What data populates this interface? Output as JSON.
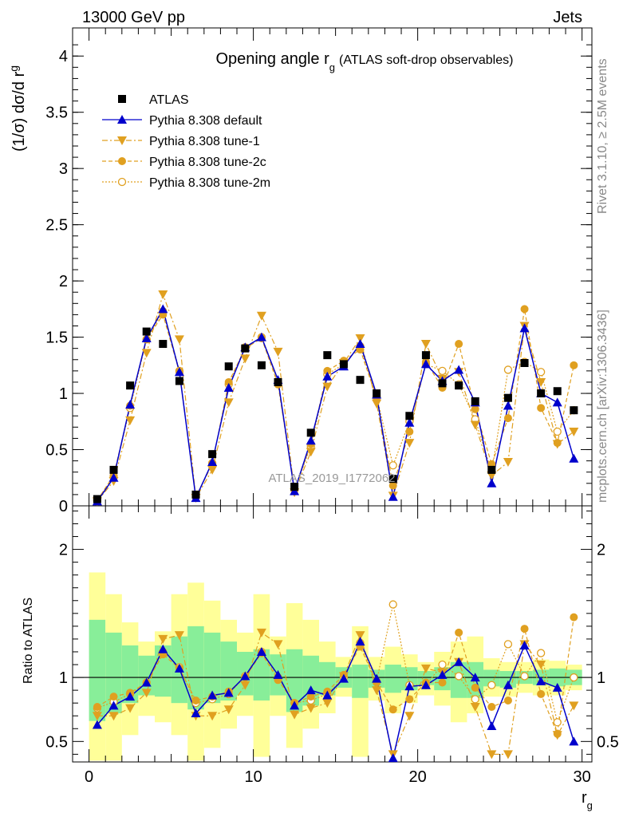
{
  "header": {
    "left": "13000 GeV pp",
    "right": "Jets"
  },
  "side_labels": {
    "rivet": "Rivet 3.1.10, ≥ 2.5M events",
    "mcplots": "mcplots.cern.ch [arXiv:1306.3436]"
  },
  "colors": {
    "atlas": "#000000",
    "default": "#0000cc",
    "tunes": "#e0a020",
    "band_inner": "#88ee99",
    "band_outer": "#ffff99"
  },
  "chart_data": [
    {
      "type": "scatter",
      "title": "Opening angle r",
      "title_sub": "g",
      "title_suffix": "(ATLAS soft-drop observables)",
      "ylabel": "(1/σ) dσ/d r",
      "ylabel_sub": "g",
      "watermark": "ATLAS_2019_I1772062",
      "xlim": [
        -1,
        30.6
      ],
      "ylim": [
        0,
        4.25
      ],
      "yticks": [
        "0",
        "0.5",
        "1",
        "1.5",
        "2",
        "2.5",
        "3",
        "3.5",
        "4"
      ],
      "ytick_values": [
        0,
        0.5,
        1,
        1.5,
        2,
        2.5,
        3,
        3.5,
        4
      ],
      "legend_position": "top-left",
      "series": [
        {
          "name": "ATLAS",
          "marker": "square",
          "x": [
            0.5,
            1.5,
            2.5,
            3.5,
            4.5,
            5.5,
            6.5,
            7.5,
            8.5,
            9.5,
            10.5,
            11.5,
            12.5,
            13.5,
            14.5,
            15.5,
            16.5,
            17.5,
            18.5,
            19.5,
            20.5,
            21.5,
            22.5,
            23.5,
            24.5,
            25.5,
            26.5,
            27.5,
            28.5,
            29.5
          ],
          "values": [
            0.06,
            0.32,
            1.07,
            1.55,
            1.44,
            1.11,
            0.1,
            0.46,
            1.24,
            1.4,
            1.25,
            1.1,
            0.17,
            0.65,
            1.34,
            1.26,
            1.12,
            1.0,
            0.24,
            0.8,
            1.34,
            1.09,
            1.07,
            0.93,
            0.32,
            0.96,
            1.27,
            1.0,
            1.02,
            0.85
          ]
        },
        {
          "name": "Pythia 8.308 default",
          "marker": "triangle-up",
          "x": [
            0.5,
            1.5,
            2.5,
            3.5,
            4.5,
            5.5,
            6.5,
            7.5,
            8.5,
            9.5,
            10.5,
            11.5,
            12.5,
            13.5,
            14.5,
            15.5,
            16.5,
            17.5,
            18.5,
            19.5,
            20.5,
            21.5,
            22.5,
            23.5,
            24.5,
            25.5,
            26.5,
            27.5,
            28.5,
            29.5
          ],
          "values": [
            0.04,
            0.25,
            0.9,
            1.49,
            1.75,
            1.19,
            0.07,
            0.39,
            1.05,
            1.41,
            1.5,
            1.12,
            0.13,
            0.58,
            1.15,
            1.24,
            1.44,
            0.99,
            0.08,
            0.74,
            1.26,
            1.11,
            1.21,
            0.92,
            0.2,
            0.89,
            1.58,
            1.0,
            0.92,
            0.42
          ]
        },
        {
          "name": "Pythia 8.308 tune-1",
          "marker": "triangle-down",
          "x": [
            0.5,
            1.5,
            2.5,
            3.5,
            4.5,
            5.5,
            6.5,
            7.5,
            8.5,
            9.5,
            10.5,
            11.5,
            12.5,
            13.5,
            14.5,
            15.5,
            16.5,
            17.5,
            18.5,
            19.5,
            20.5,
            21.5,
            22.5,
            23.5,
            24.5,
            25.5,
            26.5,
            27.5,
            28.5,
            29.5
          ],
          "values": [
            0.04,
            0.22,
            0.76,
            1.36,
            1.88,
            1.48,
            0.07,
            0.32,
            0.92,
            1.31,
            1.69,
            1.37,
            0.12,
            0.48,
            1.06,
            1.27,
            1.49,
            0.91,
            0.09,
            0.56,
            1.44,
            1.13,
            1.19,
            0.72,
            0.27,
            0.39,
            1.6,
            1.1,
            0.55,
            0.66
          ]
        },
        {
          "name": "Pythia 8.308 tune-2c",
          "marker": "circle",
          "x": [
            0.5,
            1.5,
            2.5,
            3.5,
            4.5,
            5.5,
            6.5,
            7.5,
            8.5,
            9.5,
            10.5,
            11.5,
            12.5,
            13.5,
            14.5,
            15.5,
            16.5,
            17.5,
            18.5,
            19.5,
            20.5,
            21.5,
            22.5,
            23.5,
            24.5,
            25.5,
            26.5,
            27.5,
            28.5,
            29.5
          ],
          "values": [
            0.05,
            0.27,
            0.89,
            1.48,
            1.7,
            1.19,
            0.08,
            0.37,
            1.1,
            1.4,
            1.49,
            1.08,
            0.14,
            0.55,
            1.2,
            1.29,
            1.39,
            0.96,
            0.18,
            0.66,
            1.28,
            1.05,
            1.44,
            0.86,
            0.37,
            0.78,
            1.75,
            0.87,
            0.56,
            1.25
          ]
        },
        {
          "name": "Pythia 8.308 tune-2m",
          "marker": "open-circle",
          "x": [
            0.5,
            1.5,
            2.5,
            3.5,
            4.5,
            5.5,
            6.5,
            7.5,
            8.5,
            9.5,
            10.5,
            11.5,
            12.5,
            13.5,
            14.5,
            15.5,
            16.5,
            17.5,
            18.5,
            19.5,
            20.5,
            21.5,
            22.5,
            23.5,
            24.5,
            25.5,
            26.5,
            27.5,
            28.5,
            29.5
          ],
          "values": [
            0.05,
            0.26,
            0.87,
            1.48,
            1.73,
            1.2,
            0.08,
            0.38,
            1.08,
            1.41,
            1.5,
            1.1,
            0.14,
            0.53,
            1.17,
            1.26,
            1.42,
            0.97,
            0.36,
            0.75,
            1.26,
            1.2,
            1.08,
            0.77,
            0.3,
            1.21,
            1.28,
            1.19,
            0.66,
            0.85
          ]
        }
      ]
    },
    {
      "type": "scatter",
      "ylabel": "Ratio to ATLAS",
      "xlabel": "r",
      "xlabel_sub": "g",
      "xlim": [
        -1,
        30.6
      ],
      "ylim": [
        0.34,
        2.34
      ],
      "yticks": [
        "0.5",
        "1",
        "2"
      ],
      "ytick_values": [
        0.5,
        1,
        2
      ],
      "xticks": [
        "0",
        "10",
        "20",
        "30"
      ],
      "xtick_values": [
        0,
        10,
        20,
        30
      ],
      "reference_line": 1,
      "bands": {
        "x": [
          0.5,
          1.5,
          2.5,
          3.5,
          4.5,
          5.5,
          6.5,
          7.5,
          8.5,
          9.5,
          10.5,
          11.5,
          12.5,
          13.5,
          14.5,
          15.5,
          16.5,
          17.5,
          18.5,
          19.5,
          20.5,
          21.5,
          22.5,
          23.5,
          24.5,
          25.5,
          26.5,
          27.5,
          28.5,
          29.5
        ],
        "inner_lo": [
          0.66,
          0.72,
          0.8,
          0.86,
          0.85,
          0.8,
          0.75,
          0.8,
          0.82,
          0.86,
          0.82,
          0.86,
          0.73,
          0.78,
          0.86,
          0.92,
          0.84,
          0.92,
          0.88,
          0.9,
          0.94,
          0.9,
          0.84,
          0.84,
          0.93,
          0.92,
          0.95,
          0.94,
          0.93,
          0.94
        ],
        "inner_hi": [
          1.45,
          1.35,
          1.25,
          1.17,
          1.25,
          1.32,
          1.4,
          1.35,
          1.28,
          1.2,
          1.22,
          1.18,
          1.22,
          1.17,
          1.12,
          1.08,
          1.1,
          1.06,
          1.1,
          1.08,
          1.05,
          1.08,
          1.12,
          1.12,
          1.06,
          1.05,
          1.05,
          1.06,
          1.07,
          1.06
        ],
        "outer_lo": [
          0.35,
          0.35,
          0.55,
          0.7,
          0.65,
          0.55,
          0.35,
          0.45,
          0.6,
          0.7,
          0.38,
          0.7,
          0.45,
          0.6,
          0.72,
          0.85,
          0.38,
          0.82,
          0.72,
          0.8,
          0.86,
          0.78,
          0.65,
          0.72,
          0.85,
          0.85,
          0.88,
          0.86,
          0.86,
          0.9
        ],
        "outer_hi": [
          1.82,
          1.65,
          1.43,
          1.28,
          1.36,
          1.65,
          1.74,
          1.6,
          1.45,
          1.35,
          1.65,
          1.32,
          1.58,
          1.45,
          1.28,
          1.16,
          1.4,
          1.16,
          1.24,
          1.18,
          1.12,
          1.2,
          1.28,
          1.32,
          1.15,
          1.12,
          1.12,
          1.14,
          1.13,
          1.1
        ]
      },
      "series": [
        {
          "name": "Pythia 8.308 default",
          "marker": "triangle-up",
          "x": [
            0.5,
            1.5,
            2.5,
            3.5,
            4.5,
            5.5,
            6.5,
            7.5,
            8.5,
            9.5,
            10.5,
            11.5,
            12.5,
            13.5,
            14.5,
            15.5,
            16.5,
            17.5,
            18.5,
            19.5,
            20.5,
            21.5,
            22.5,
            23.5,
            24.5,
            25.5,
            26.5,
            27.5,
            28.5,
            29.5
          ],
          "values": [
            0.63,
            0.78,
            0.85,
            0.96,
            1.22,
            1.07,
            0.72,
            0.86,
            0.88,
            1.01,
            1.2,
            1.02,
            0.78,
            0.9,
            0.86,
            0.99,
            1.28,
            0.99,
            0.37,
            0.93,
            0.94,
            1.02,
            1.12,
            1.0,
            0.62,
            0.94,
            1.25,
            0.97,
            0.92,
            0.5
          ]
        },
        {
          "name": "Pythia 8.308 tune-1",
          "marker": "triangle-down",
          "x": [
            0.5,
            1.5,
            2.5,
            3.5,
            4.5,
            5.5,
            6.5,
            7.5,
            8.5,
            9.5,
            10.5,
            11.5,
            12.5,
            13.5,
            14.5,
            15.5,
            16.5,
            17.5,
            18.5,
            19.5,
            20.5,
            21.5,
            22.5,
            23.5,
            24.5,
            25.5,
            26.5,
            27.5,
            28.5,
            29.5
          ],
          "values": [
            0.7,
            0.7,
            0.76,
            0.88,
            1.3,
            1.33,
            0.7,
            0.7,
            0.75,
            0.94,
            1.35,
            1.26,
            0.71,
            0.76,
            0.8,
            1.01,
            1.33,
            0.9,
            0.4,
            0.7,
            1.07,
            1.04,
            1.12,
            0.77,
            0.4,
            0.4,
            1.26,
            1.1,
            0.55,
            0.78
          ]
        },
        {
          "name": "Pythia 8.308 tune-2c",
          "marker": "circle",
          "x": [
            0.5,
            1.5,
            2.5,
            3.5,
            4.5,
            5.5,
            6.5,
            7.5,
            8.5,
            9.5,
            10.5,
            11.5,
            12.5,
            13.5,
            14.5,
            15.5,
            16.5,
            17.5,
            18.5,
            19.5,
            20.5,
            21.5,
            22.5,
            23.5,
            24.5,
            25.5,
            26.5,
            27.5,
            28.5,
            29.5
          ],
          "values": [
            0.77,
            0.85,
            0.88,
            0.96,
            1.18,
            1.07,
            0.82,
            0.85,
            0.89,
            1.0,
            1.19,
            0.98,
            0.8,
            0.85,
            0.89,
            1.02,
            1.24,
            0.96,
            0.75,
            0.83,
            0.96,
            0.96,
            1.35,
            0.92,
            0.77,
            0.82,
            1.38,
            0.87,
            0.56,
            1.47
          ]
        },
        {
          "name": "Pythia 8.308 tune-2m",
          "marker": "open-circle",
          "x": [
            0.5,
            1.5,
            2.5,
            3.5,
            4.5,
            5.5,
            6.5,
            7.5,
            8.5,
            9.5,
            10.5,
            11.5,
            12.5,
            13.5,
            14.5,
            15.5,
            16.5,
            17.5,
            18.5,
            19.5,
            20.5,
            21.5,
            22.5,
            23.5,
            24.5,
            25.5,
            26.5,
            27.5,
            28.5,
            29.5
          ],
          "values": [
            0.76,
            0.81,
            0.87,
            0.96,
            1.2,
            1.08,
            0.8,
            0.83,
            0.87,
            1.01,
            1.2,
            1.0,
            0.8,
            0.82,
            0.87,
            1.0,
            1.27,
            0.97,
            1.57,
            0.94,
            0.94,
            1.1,
            1.01,
            0.83,
            0.94,
            1.26,
            1.01,
            1.19,
            0.65,
            1.0
          ]
        }
      ]
    }
  ]
}
